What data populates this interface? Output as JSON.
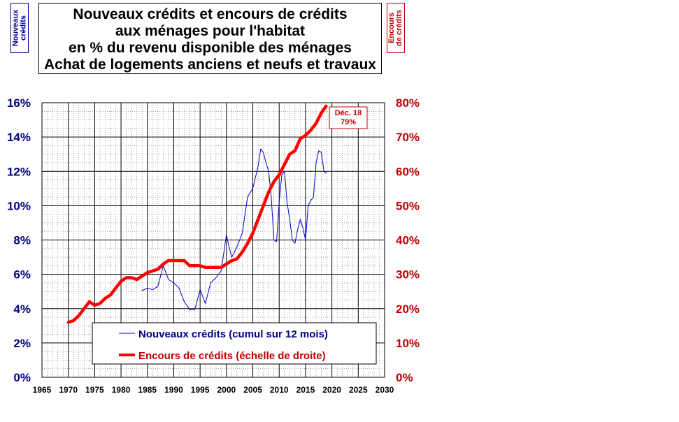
{
  "title_lines": [
    "Nouveaux crédits et encours de crédits",
    "aux ménages pour l'habitat",
    "en % du revenu disponible des ménages",
    "Achat de logements anciens et neufs et travaux"
  ],
  "left_axis_label": "Nouveaux\ncrédits",
  "right_axis_label": "Encours\nde crédits",
  "annotation": {
    "line1": "Déc. 18",
    "line2": "79%",
    "x": 2018,
    "y": 79
  },
  "colors": {
    "new_credit": "#0000cc",
    "outstanding": "#ff0000",
    "left_axis": "#00008b",
    "right_axis": "#c00000"
  },
  "chart_data": {
    "type": "line",
    "xlim": [
      1965,
      2030
    ],
    "x_ticks": [
      "1965",
      "1970",
      "1975",
      "1980",
      "1985",
      "1990",
      "1995",
      "2000",
      "2005",
      "2010",
      "2015",
      "2020",
      "2025",
      "2030"
    ],
    "ylim_left": [
      0,
      16
    ],
    "ylim_right": [
      0,
      80
    ],
    "left_ticks": [
      "0%",
      "2%",
      "4%",
      "6%",
      "8%",
      "10%",
      "12%",
      "14%",
      "16%"
    ],
    "right_ticks": [
      "0%",
      "10%",
      "20%",
      "30%",
      "40%",
      "50%",
      "60%",
      "70%",
      "80%"
    ],
    "grid": true,
    "legend_position": "bottom-center",
    "series": [
      {
        "name": "Nouveaux crédits (cumul sur 12 mois)",
        "axis": "left",
        "points": [
          [
            1984,
            5.05
          ],
          [
            1985,
            5.2
          ],
          [
            1986,
            5.1
          ],
          [
            1987,
            5.3
          ],
          [
            1988,
            6.5
          ],
          [
            1989,
            5.7
          ],
          [
            1990,
            5.5
          ],
          [
            1991,
            5.2
          ],
          [
            1992,
            4.4
          ],
          [
            1993,
            3.95
          ],
          [
            1994,
            3.95
          ],
          [
            1995,
            5.1
          ],
          [
            1996,
            4.3
          ],
          [
            1997,
            5.5
          ],
          [
            1998,
            5.8
          ],
          [
            1999,
            6.2
          ],
          [
            2000,
            8.3
          ],
          [
            2000.5,
            7.6
          ],
          [
            2001,
            7.0
          ],
          [
            2002,
            7.6
          ],
          [
            2003,
            8.4
          ],
          [
            2004,
            10.5
          ],
          [
            2005,
            11.0
          ],
          [
            2006,
            12.3
          ],
          [
            2006.5,
            13.3
          ],
          [
            2007,
            13.1
          ],
          [
            2007.5,
            12.5
          ],
          [
            2008,
            12.0
          ],
          [
            2008.5,
            10.5
          ],
          [
            2009,
            8.0
          ],
          [
            2009.5,
            7.9
          ],
          [
            2010,
            10.2
          ],
          [
            2010.5,
            11.8
          ],
          [
            2011,
            12.0
          ],
          [
            2011.5,
            10.2
          ],
          [
            2012,
            9.2
          ],
          [
            2012.5,
            8.0
          ],
          [
            2013,
            7.8
          ],
          [
            2013.5,
            8.6
          ],
          [
            2014,
            9.2
          ],
          [
            2014.5,
            8.7
          ],
          [
            2015,
            8.0
          ],
          [
            2015.5,
            10.0
          ],
          [
            2016,
            10.3
          ],
          [
            2016.5,
            10.5
          ],
          [
            2017,
            12.5
          ],
          [
            2017.5,
            13.2
          ],
          [
            2018,
            13.1
          ],
          [
            2018.5,
            12.0
          ],
          [
            2019,
            11.9
          ]
        ]
      },
      {
        "name": "Encours de crédits (échelle de droite)",
        "axis": "right",
        "points": [
          [
            1970,
            16
          ],
          [
            1971,
            16.5
          ],
          [
            1972,
            18
          ],
          [
            1973,
            20
          ],
          [
            1974,
            22
          ],
          [
            1975,
            21
          ],
          [
            1976,
            21.5
          ],
          [
            1977,
            23
          ],
          [
            1978,
            24
          ],
          [
            1979,
            26
          ],
          [
            1980,
            28
          ],
          [
            1981,
            29
          ],
          [
            1982,
            29
          ],
          [
            1983,
            28.5
          ],
          [
            1984,
            29.5
          ],
          [
            1985,
            30.5
          ],
          [
            1986,
            31
          ],
          [
            1987,
            31.5
          ],
          [
            1988,
            33
          ],
          [
            1989,
            34
          ],
          [
            1990,
            34
          ],
          [
            1991,
            34
          ],
          [
            1992,
            34
          ],
          [
            1993,
            32.5
          ],
          [
            1994,
            32.5
          ],
          [
            1995,
            32.5
          ],
          [
            1996,
            32
          ],
          [
            1997,
            32
          ],
          [
            1998,
            32
          ],
          [
            1999,
            32
          ],
          [
            2000,
            33
          ],
          [
            2001,
            34
          ],
          [
            2002,
            34.5
          ],
          [
            2003,
            36.5
          ],
          [
            2004,
            39
          ],
          [
            2005,
            42
          ],
          [
            2006,
            46
          ],
          [
            2007,
            50
          ],
          [
            2008,
            54
          ],
          [
            2009,
            57
          ],
          [
            2010,
            59
          ],
          [
            2011,
            62
          ],
          [
            2012,
            65
          ],
          [
            2013,
            66
          ],
          [
            2014,
            69.5
          ],
          [
            2015,
            70.5
          ],
          [
            2016,
            72
          ],
          [
            2017,
            74
          ],
          [
            2018,
            77
          ],
          [
            2018.9,
            79
          ]
        ]
      }
    ]
  }
}
